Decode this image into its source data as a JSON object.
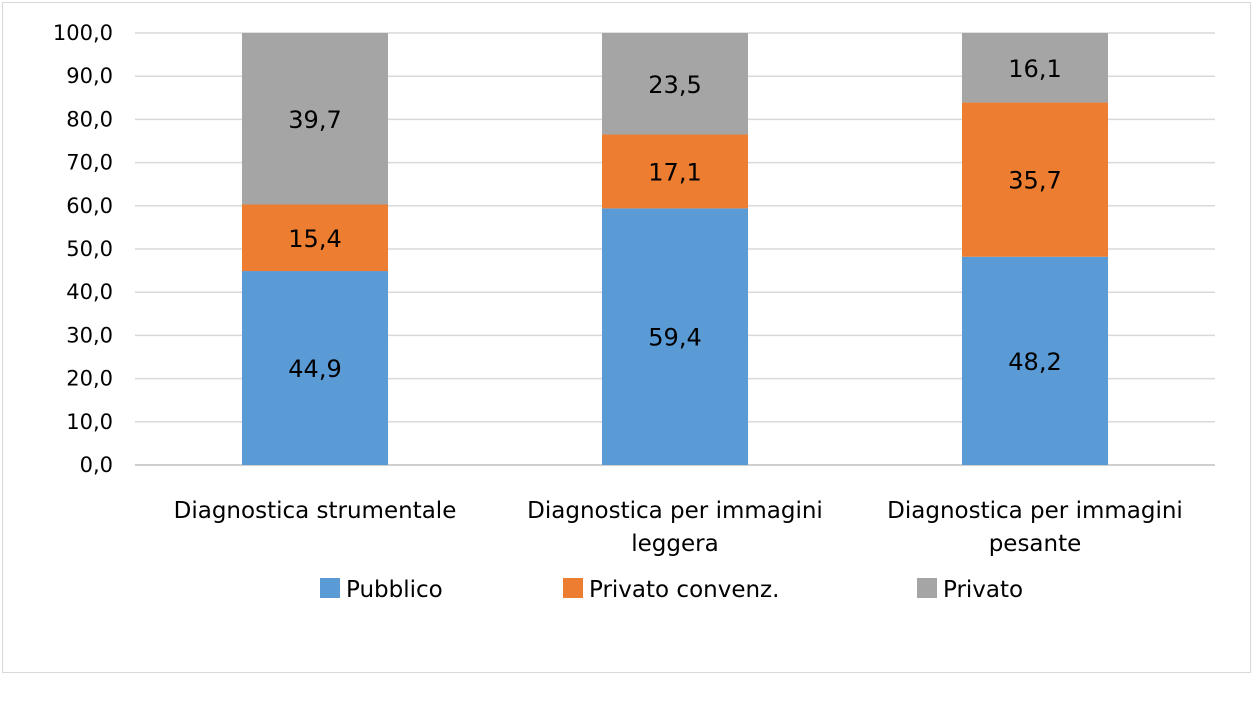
{
  "chart_data": {
    "type": "bar",
    "stacked": true,
    "categories": [
      [
        "Diagnostica strumentale"
      ],
      [
        "Diagnostica per immagini",
        "leggera"
      ],
      [
        "Diagnostica per immagini",
        "pesante"
      ]
    ],
    "series": [
      {
        "name": "Pubblico",
        "color": "#5b9bd5",
        "values": [
          44.9,
          59.4,
          48.2
        ],
        "labels": [
          "44,9",
          "59,4",
          "48,2"
        ]
      },
      {
        "name": "Privato convenz.",
        "color": "#ed7d31",
        "values": [
          15.4,
          17.1,
          35.7
        ],
        "labels": [
          "15,4",
          "17,1",
          "35,7"
        ]
      },
      {
        "name": "Privato",
        "color": "#a5a5a5",
        "values": [
          39.7,
          23.5,
          16.1
        ],
        "labels": [
          "39,7",
          "23,5",
          "16,1"
        ]
      }
    ],
    "ylim": [
      0,
      100
    ],
    "yticks": [
      "0,0",
      "10,0",
      "20,0",
      "30,0",
      "40,0",
      "50,0",
      "60,0",
      "70,0",
      "80,0",
      "90,0",
      "100,0"
    ],
    "grid": true,
    "legend": "bottom"
  }
}
